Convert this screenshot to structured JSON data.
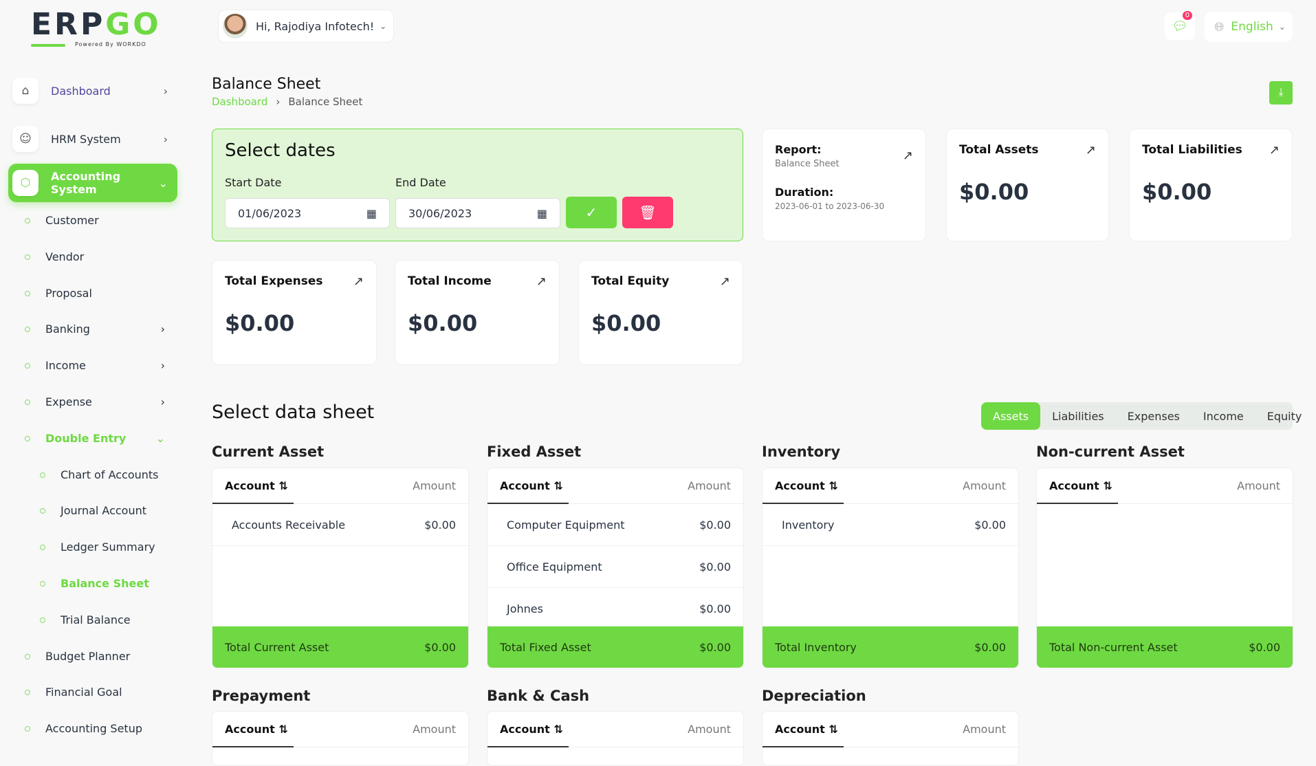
{
  "brand": {
    "logo_text": "ERPGO",
    "powered": "Powered By WORKDO"
  },
  "header": {
    "greeting": "Hi, Rajodiya Infotech!",
    "notifications": "0",
    "language": "English"
  },
  "sidebar": {
    "top": [
      {
        "label": "Dashboard"
      },
      {
        "label": "HRM System"
      },
      {
        "label": "Accounting System"
      }
    ],
    "items": [
      {
        "label": "Customer"
      },
      {
        "label": "Vendor"
      },
      {
        "label": "Proposal"
      },
      {
        "label": "Banking"
      },
      {
        "label": "Income"
      },
      {
        "label": "Expense"
      },
      {
        "label": "Double Entry"
      },
      {
        "label": "Chart of Accounts"
      },
      {
        "label": "Journal Account"
      },
      {
        "label": "Ledger Summary"
      },
      {
        "label": "Balance Sheet"
      },
      {
        "label": "Trial Balance"
      },
      {
        "label": "Budget Planner"
      },
      {
        "label": "Financial Goal"
      },
      {
        "label": "Accounting Setup"
      }
    ]
  },
  "page": {
    "title": "Balance Sheet",
    "breadcrumb": [
      "Dashboard",
      "Balance Sheet"
    ]
  },
  "dates": {
    "title": "Select dates",
    "start_label": "Start Date",
    "start_value": "01/06/2023",
    "end_label": "End Date",
    "end_value": "30/06/2023"
  },
  "report": {
    "report_label": "Report:",
    "report_value": "Balance Sheet",
    "duration_label": "Duration:",
    "duration_value": "2023-06-01 to 2023-06-30"
  },
  "cards": [
    {
      "title": "Total Assets",
      "value": "$0.00"
    },
    {
      "title": "Total Liabilities",
      "value": "$0.00"
    },
    {
      "title": "Total Expenses",
      "value": "$0.00"
    },
    {
      "title": "Total Income",
      "value": "$0.00"
    },
    {
      "title": "Total Equity",
      "value": "$0.00"
    }
  ],
  "datasheet": {
    "title": "Select data sheet",
    "tabs": [
      "Assets",
      "Liabilities",
      "Expenses",
      "Income",
      "Equity"
    ],
    "active": "Assets"
  },
  "table_headers": {
    "account": "Account ⇅",
    "amount": "Amount"
  },
  "tables": [
    {
      "title": "Current Asset",
      "rows": [
        {
          "account": "Accounts Receivable",
          "amount": "$0.00"
        }
      ],
      "total_label": "Total Current Asset",
      "total": "$0.00"
    },
    {
      "title": "Fixed Asset",
      "rows": [
        {
          "account": "Computer Equipment",
          "amount": "$0.00"
        },
        {
          "account": "Office Equipment",
          "amount": "$0.00"
        },
        {
          "account": "Johnes",
          "amount": "$0.00"
        }
      ],
      "total_label": "Total Fixed Asset",
      "total": "$0.00"
    },
    {
      "title": "Inventory",
      "rows": [
        {
          "account": "Inventory",
          "amount": "$0.00"
        }
      ],
      "total_label": "Total Inventory",
      "total": "$0.00"
    },
    {
      "title": "Non-current Asset",
      "rows": [],
      "total_label": "Total Non-current Asset",
      "total": "$0.00"
    },
    {
      "title": "Prepayment"
    },
    {
      "title": "Bank & Cash"
    },
    {
      "title": "Depreciation"
    }
  ],
  "colors": {
    "accent": "#6fd943",
    "danger": "#ff3a6e",
    "dashboard_link": "#51459d"
  }
}
